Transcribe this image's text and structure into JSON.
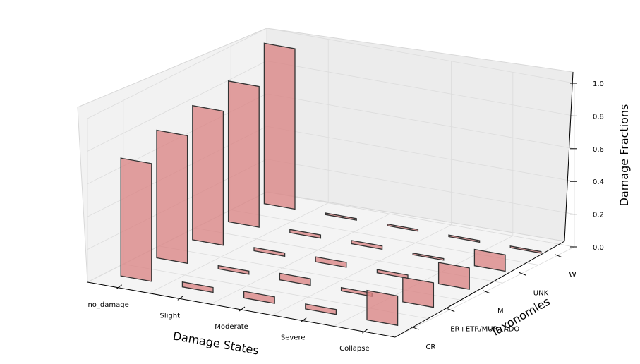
{
  "chart_data": {
    "type": "bar3d",
    "xlabel": "Damage States",
    "ylabel": "Taxonomies",
    "zlabel": "Damage Fractions",
    "categories": [
      "no_damage",
      "Slight",
      "Moderate",
      "Severe",
      "Collapse"
    ],
    "taxonomies": [
      "CR",
      "ER+ETR/MUR+ADO",
      "M",
      "UNK",
      "W"
    ],
    "zlim": [
      0,
      1.0
    ],
    "zticks": [
      "0.0",
      "0.2",
      "0.4",
      "0.6",
      "0.8",
      "1.0"
    ],
    "grid": true,
    "bar_color": "#d98080",
    "bar_edge_color": "#333333",
    "series": [
      {
        "values": [
          0.72,
          0.03,
          0.04,
          0.03,
          0.18
        ]
      },
      {
        "values": [
          0.78,
          0.02,
          0.04,
          0.02,
          0.15
        ]
      },
      {
        "values": [
          0.82,
          0.02,
          0.03,
          0.02,
          0.13
        ]
      },
      {
        "values": [
          0.86,
          0.02,
          0.02,
          0.01,
          0.1
        ]
      },
      {
        "values": [
          0.98,
          0.01,
          0.01,
          0.01,
          0.01
        ]
      }
    ]
  }
}
